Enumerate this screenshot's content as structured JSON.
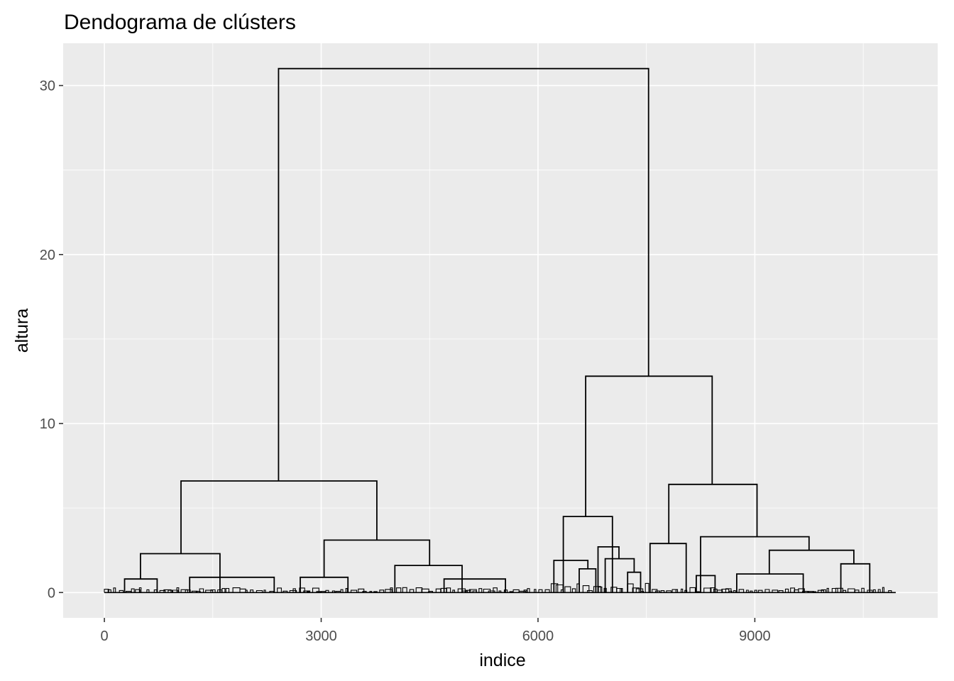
{
  "chart_data": {
    "type": "dendrogram",
    "title": "Dendograma de clústers",
    "xlabel": "indice",
    "ylabel": "altura",
    "xlim": [
      -570,
      11530
    ],
    "ylim": [
      -1.5,
      32.5
    ],
    "x_ticks": [
      0,
      3000,
      6000,
      9000
    ],
    "x_tick_labels": [
      "0",
      "3000",
      "6000",
      "9000"
    ],
    "y_ticks": [
      0,
      10,
      20,
      30
    ],
    "y_tick_labels": [
      "0",
      "10",
      "20",
      "30"
    ],
    "grid": true,
    "colors": {
      "panel_bg": "#ebebeb",
      "grid_major": "#ffffff",
      "line": "#000000",
      "tick_text": "#4d4d4d"
    },
    "merges": [
      {
        "x": [
          2410,
          7530
        ],
        "h": 31.0
      },
      {
        "x": [
          1060,
          3770
        ],
        "h": 6.6
      },
      {
        "x": [
          6660,
          8410
        ],
        "h": 12.8
      },
      {
        "x": [
          500,
          1600
        ],
        "h": 2.3
      },
      {
        "x": [
          3040,
          4500
        ],
        "h": 3.1
      },
      {
        "x": [
          6350,
          7030
        ],
        "h": 4.5
      },
      {
        "x": [
          7810,
          9030
        ],
        "h": 6.4
      },
      {
        "x": [
          8250,
          9750
        ],
        "h": 3.3
      },
      {
        "x": [
          9200,
          10370
        ],
        "h": 2.5
      },
      {
        "x": [
          10190,
          10590
        ],
        "h": 1.7
      },
      {
        "x": [
          8750,
          9670
        ],
        "h": 1.1
      },
      {
        "x": [
          7550,
          8050
        ],
        "h": 2.9
      },
      {
        "x": [
          6830,
          7120
        ],
        "h": 2.7
      },
      {
        "x": [
          6930,
          7330
        ],
        "h": 2.0
      },
      {
        "x": [
          6220,
          6690
        ],
        "h": 1.9
      },
      {
        "x": [
          4020,
          4950
        ],
        "h": 1.6
      },
      {
        "x": [
          1180,
          2350
        ],
        "h": 0.9
      },
      {
        "x": [
          2710,
          3370
        ],
        "h": 0.9
      },
      {
        "x": [
          280,
          730
        ],
        "h": 0.8
      },
      {
        "x": [
          4700,
          5550
        ],
        "h": 0.8
      },
      {
        "x": [
          6570,
          6800
        ],
        "h": 1.4
      },
      {
        "x": [
          7240,
          7420
        ],
        "h": 1.2
      },
      {
        "x": [
          8190,
          8450
        ],
        "h": 1.0
      }
    ]
  }
}
